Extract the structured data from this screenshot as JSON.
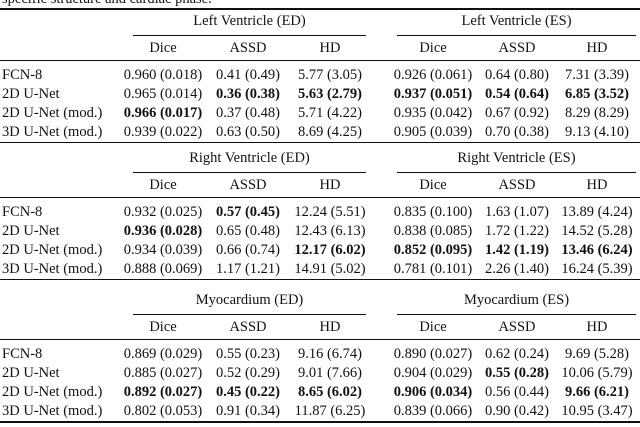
{
  "caption": "specific structure and cardiac phase.",
  "blocks": [
    {
      "groups": [
        "Left Ventricle (ED)",
        "Left Ventricle (ES)"
      ],
      "metrics": [
        "Dice",
        "ASSD",
        "HD",
        "Dice",
        "ASSD",
        "HD"
      ],
      "rows": [
        {
          "label": "FCN-8",
          "cells": [
            "0.960 (0.018)",
            "0.41 (0.49)",
            "5.77 (3.05)",
            "0.926 (0.061)",
            "0.64 (0.80)",
            "7.31 (3.39)"
          ],
          "bold": []
        },
        {
          "label": "2D U-Net",
          "cells": [
            "0.965 (0.014)",
            "0.36 (0.38)",
            "5.63 (2.79)",
            "0.937 (0.051)",
            "0.54 (0.64)",
            "6.85 (3.52)"
          ],
          "bold": [
            1,
            2,
            3,
            4,
            5
          ]
        },
        {
          "label": "2D U-Net (mod.)",
          "cells": [
            "0.966 (0.017)",
            "0.37 (0.48)",
            "5.71 (4.22)",
            "0.935 (0.042)",
            "0.67 (0.92)",
            "8.29 (8.29)"
          ],
          "bold": [
            0
          ]
        },
        {
          "label": "3D U-Net (mod.)",
          "cells": [
            "0.939 (0.022)",
            "0.63 (0.50)",
            "8.69 (4.25)",
            "0.905 (0.039)",
            "0.70 (0.38)",
            "9.13 (4.10)"
          ],
          "bold": []
        }
      ]
    },
    {
      "groups": [
        "Right Ventricle (ED)",
        "Right Ventricle (ES)"
      ],
      "metrics": [
        "Dice",
        "ASSD",
        "HD",
        "Dice",
        "ASSD",
        "HD"
      ],
      "rows": [
        {
          "label": "FCN-8",
          "cells": [
            "0.932 (0.025)",
            "0.57 (0.45)",
            "12.24 (5.51)",
            "0.835 (0.100)",
            "1.63 (1.07)",
            "13.89 (4.24)"
          ],
          "bold": [
            1
          ]
        },
        {
          "label": "2D U-Net",
          "cells": [
            "0.936 (0.028)",
            "0.65 (0.48)",
            "12.43 (6.13)",
            "0.838 (0.085)",
            "1.72 (1.22)",
            "14.52 (5.28)"
          ],
          "bold": [
            0
          ]
        },
        {
          "label": "2D U-Net (mod.)",
          "cells": [
            "0.934 (0.039)",
            "0.66 (0.74)",
            "12.17 (6.02)",
            "0.852 (0.095)",
            "1.42 (1.19)",
            "13.46 (6.24)"
          ],
          "bold": [
            2,
            3,
            4,
            5
          ]
        },
        {
          "label": "3D U-Net (mod.)",
          "cells": [
            "0.888 (0.069)",
            "1.17 (1.21)",
            "14.91 (5.02)",
            "0.781 (0.101)",
            "2.26 (1.40)",
            "16.24 (5.39)"
          ],
          "bold": []
        }
      ]
    },
    {
      "groups": [
        "Myocardium (ED)",
        "Myocardium (ES)"
      ],
      "metrics": [
        "Dice",
        "ASSD",
        "HD",
        "Dice",
        "ASSD",
        "HD"
      ],
      "rows": [
        {
          "label": "FCN-8",
          "cells": [
            "0.869 (0.029)",
            "0.55 (0.23)",
            "9.16 (6.74)",
            "0.890 (0.027)",
            "0.62 (0.24)",
            "9.69 (5.28)"
          ],
          "bold": []
        },
        {
          "label": "2D U-Net",
          "cells": [
            "0.885 (0.027)",
            "0.52 (0.29)",
            "9.01 (7.66)",
            "0.904 (0.029)",
            "0.55 (0.28)",
            "10.06 (5.79)"
          ],
          "bold": [
            4
          ]
        },
        {
          "label": "2D U-Net (mod.)",
          "cells": [
            "0.892 (0.027)",
            "0.45 (0.22)",
            "8.65 (6.02)",
            "0.906 (0.034)",
            "0.56 (0.44)",
            "9.66 (6.21)"
          ],
          "bold": [
            0,
            1,
            2,
            3,
            5
          ]
        },
        {
          "label": "3D U-Net (mod.)",
          "cells": [
            "0.802 (0.053)",
            "0.91 (0.34)",
            "11.87 (6.25)",
            "0.839 (0.066)",
            "0.90 (0.42)",
            "10.95 (3.47)"
          ],
          "bold": []
        }
      ]
    }
  ]
}
